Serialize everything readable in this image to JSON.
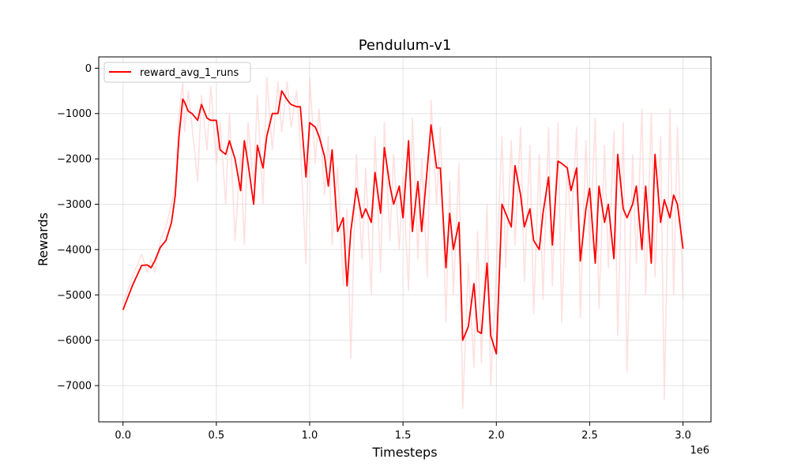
{
  "chart_data": {
    "type": "line",
    "title": "Pendulum-v1",
    "xlabel": "Timesteps",
    "ylabel": "Rewards",
    "x_scale_label": "1e6",
    "xlim": [
      -0.13,
      3.15
    ],
    "ylim": [
      -7800,
      250
    ],
    "xticks": [
      0.0,
      0.5,
      1.0,
      1.5,
      2.0,
      2.5,
      3.0
    ],
    "xtick_labels": [
      "0.0",
      "0.5",
      "1.0",
      "1.5",
      "2.0",
      "2.5",
      "3.0"
    ],
    "yticks": [
      0,
      -1000,
      -2000,
      -3000,
      -4000,
      -5000,
      -6000,
      -7000
    ],
    "ytick_labels": [
      "0",
      "−1000",
      "−2000",
      "−3000",
      "−4000",
      "−5000",
      "−6000",
      "−7000"
    ],
    "grid": true,
    "legend_position": "top-left",
    "series": [
      {
        "name": "reward_avg_1_runs",
        "color": "#ff0000",
        "x": [
          0,
          0.05,
          0.1,
          0.13,
          0.15,
          0.17,
          0.2,
          0.23,
          0.26,
          0.28,
          0.3,
          0.32,
          0.33,
          0.35,
          0.37,
          0.4,
          0.42,
          0.45,
          0.47,
          0.5,
          0.52,
          0.55,
          0.57,
          0.6,
          0.63,
          0.65,
          0.67,
          0.7,
          0.72,
          0.75,
          0.77,
          0.8,
          0.83,
          0.85,
          0.88,
          0.9,
          0.93,
          0.95,
          0.98,
          1.0,
          1.03,
          1.05,
          1.08,
          1.1,
          1.12,
          1.15,
          1.18,
          1.2,
          1.22,
          1.25,
          1.28,
          1.3,
          1.33,
          1.35,
          1.38,
          1.4,
          1.43,
          1.45,
          1.48,
          1.5,
          1.53,
          1.55,
          1.58,
          1.6,
          1.63,
          1.65,
          1.68,
          1.7,
          1.73,
          1.75,
          1.77,
          1.8,
          1.82,
          1.85,
          1.88,
          1.9,
          1.92,
          1.95,
          1.97,
          2.0,
          2.03,
          2.05,
          2.08,
          2.1,
          2.13,
          2.15,
          2.18,
          2.2,
          2.23,
          2.25,
          2.28,
          2.3,
          2.33,
          2.35,
          2.38,
          2.4,
          2.43,
          2.45,
          2.48,
          2.5,
          2.53,
          2.55,
          2.58,
          2.6,
          2.63,
          2.65,
          2.68,
          2.7,
          2.73,
          2.75,
          2.78,
          2.8,
          2.83,
          2.85,
          2.88,
          2.9,
          2.93,
          2.95,
          2.97,
          3.0
        ],
        "y": [
          -5330,
          -4800,
          -4350,
          -4340,
          -4400,
          -4250,
          -3950,
          -3800,
          -3400,
          -2800,
          -1500,
          -680,
          -750,
          -950,
          -1000,
          -1150,
          -800,
          -1100,
          -1150,
          -1150,
          -1800,
          -1900,
          -1600,
          -2000,
          -2700,
          -1600,
          -2100,
          -3000,
          -1700,
          -2200,
          -1500,
          -1000,
          -1000,
          -500,
          -700,
          -800,
          -850,
          -850,
          -2400,
          -1200,
          -1300,
          -1500,
          -1950,
          -2600,
          -1800,
          -3600,
          -3300,
          -4800,
          -3600,
          -2650,
          -3300,
          -3100,
          -3400,
          -2300,
          -3200,
          -1750,
          -2600,
          -3000,
          -2600,
          -3300,
          -1600,
          -3600,
          -2500,
          -3600,
          -2200,
          -1250,
          -2200,
          -2200,
          -4400,
          -3200,
          -4000,
          -3400,
          -6000,
          -5700,
          -4750,
          -5800,
          -5850,
          -4300,
          -5900,
          -6300,
          -3000,
          -3200,
          -3500,
          -2150,
          -2800,
          -3500,
          -3100,
          -3800,
          -4000,
          -3200,
          -2400,
          -3900,
          -2050,
          -2100,
          -2200,
          -2700,
          -2200,
          -4250,
          -3100,
          -2650,
          -4300,
          -2600,
          -3400,
          -3000,
          -4200,
          -1900,
          -3100,
          -3300,
          -3000,
          -2600,
          -4000,
          -2600,
          -4300,
          -1900,
          -3400,
          -2900,
          -3300,
          -2800,
          -3000,
          -3980
        ]
      },
      {
        "name": "",
        "color": "#ffcccc",
        "x": [
          0,
          0.05,
          0.1,
          0.13,
          0.15,
          0.17,
          0.2,
          0.23,
          0.26,
          0.28,
          0.3,
          0.32,
          0.33,
          0.35,
          0.37,
          0.4,
          0.42,
          0.45,
          0.47,
          0.5,
          0.52,
          0.55,
          0.57,
          0.6,
          0.63,
          0.65,
          0.67,
          0.7,
          0.72,
          0.75,
          0.77,
          0.8,
          0.83,
          0.85,
          0.88,
          0.9,
          0.93,
          0.95,
          0.98,
          1.0,
          1.03,
          1.05,
          1.08,
          1.1,
          1.12,
          1.15,
          1.18,
          1.2,
          1.22,
          1.25,
          1.28,
          1.3,
          1.33,
          1.35,
          1.38,
          1.4,
          1.43,
          1.45,
          1.48,
          1.5,
          1.53,
          1.55,
          1.58,
          1.6,
          1.63,
          1.65,
          1.68,
          1.7,
          1.73,
          1.75,
          1.77,
          1.8,
          1.82,
          1.85,
          1.88,
          1.9,
          1.92,
          1.95,
          1.97,
          2.0,
          2.03,
          2.05,
          2.08,
          2.1,
          2.13,
          2.15,
          2.18,
          2.2,
          2.23,
          2.25,
          2.28,
          2.3,
          2.33,
          2.35,
          2.38,
          2.4,
          2.43,
          2.45,
          2.48,
          2.5,
          2.53,
          2.55,
          2.58,
          2.6,
          2.63,
          2.65,
          2.68,
          2.7,
          2.73,
          2.75,
          2.78,
          2.8,
          2.83,
          2.85,
          2.88,
          2.9,
          2.93,
          2.95,
          2.97,
          3.0
        ],
        "y": [
          -5200,
          -4600,
          -4100,
          -4500,
          -4200,
          -4500,
          -3800,
          -3500,
          -3000,
          -2600,
          -1000,
          -300,
          -1400,
          -500,
          -1300,
          -2500,
          -600,
          -1800,
          -400,
          -2100,
          -1200,
          -3000,
          -1000,
          -3800,
          -1900,
          -3900,
          -1200,
          -2600,
          -600,
          -3000,
          -200,
          -1800,
          -300,
          -1400,
          -300,
          -1300,
          -500,
          -1700,
          -4300,
          -200,
          -2100,
          -900,
          -2800,
          -1500,
          -3900,
          -2200,
          -4800,
          -3100,
          -6400,
          -1900,
          -4200,
          -2200,
          -5000,
          -1500,
          -4500,
          -1200,
          -3800,
          -1900,
          -4000,
          -2400,
          -4900,
          -1100,
          -4200,
          -2000,
          -4600,
          -700,
          -3000,
          -1300,
          -5600,
          -2500,
          -5000,
          -2100,
          -7500,
          -4300,
          -6600,
          -3600,
          -6500,
          -3000,
          -7000,
          -4500,
          -1500,
          -4400,
          -1600,
          -3900,
          -1300,
          -4700,
          -1700,
          -5400,
          -1900,
          -5100,
          -1300,
          -4800,
          -1200,
          -5600,
          -2100,
          -3600,
          -1300,
          -5500,
          -1600,
          -4000,
          -1100,
          -5300,
          -1700,
          -4400,
          -1400,
          -5900,
          -1200,
          -6700,
          -1900,
          -4300,
          -900,
          -5000,
          -1000,
          -4600,
          -1500,
          -7300,
          -900,
          -5000,
          -1300,
          -5100
        ]
      }
    ]
  }
}
